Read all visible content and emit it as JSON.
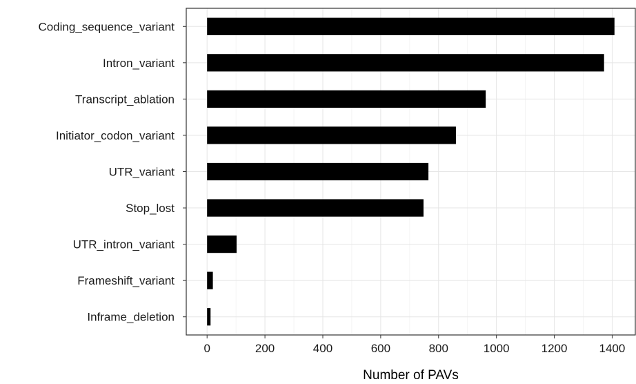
{
  "chart_data": {
    "type": "bar",
    "orientation": "horizontal",
    "categories": [
      "Coding_sequence_variant",
      "Intron_variant",
      "Transcript_ablation",
      "Initiator_codon_variant",
      "UTR_variant",
      "Stop_lost",
      "UTR_intron_variant",
      "Frameshift_variant",
      "Inframe_deletion"
    ],
    "values": [
      1408,
      1372,
      963,
      860,
      765,
      748,
      102,
      20,
      12
    ],
    "xlabel": "Number of PAVs",
    "ylabel": "",
    "xlim": [
      -72,
      1480
    ],
    "xticks": [
      0,
      200,
      400,
      600,
      800,
      1000,
      1200,
      1400
    ],
    "grid": true,
    "colors": {
      "bar": "#000000",
      "grid": "#e5e5e5",
      "panel_border": "#333333"
    }
  }
}
